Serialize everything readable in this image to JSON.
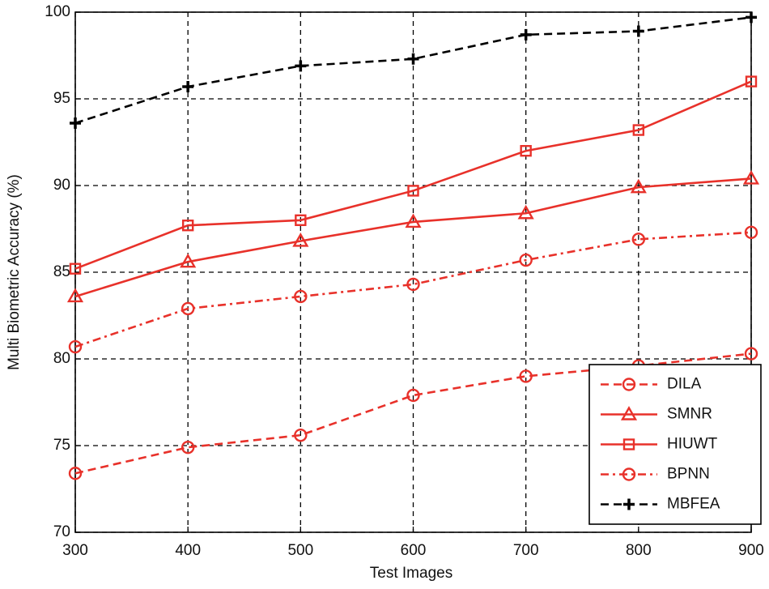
{
  "chart_data": {
    "type": "line",
    "xlabel": "Test Images",
    "ylabel": "Multi Biometric Accuracy (%)",
    "x": [
      300,
      400,
      500,
      600,
      700,
      800,
      900
    ],
    "series": [
      {
        "name": "DILA",
        "color": "#e8312a",
        "dash": "dashed",
        "marker": "circle",
        "values": [
          73.4,
          74.9,
          75.6,
          77.9,
          79.0,
          79.6,
          80.3
        ]
      },
      {
        "name": "SMNR",
        "color": "#e8312a",
        "dash": "solid",
        "marker": "triangle",
        "values": [
          83.6,
          85.6,
          86.8,
          87.9,
          88.4,
          89.9,
          90.4
        ]
      },
      {
        "name": "HIUWT",
        "color": "#e8312a",
        "dash": "solid",
        "marker": "square",
        "values": [
          85.2,
          87.7,
          88.0,
          89.7,
          92.0,
          93.2,
          96.0
        ]
      },
      {
        "name": "BPNN",
        "color": "#e8312a",
        "dash": "dashdot",
        "marker": "circle",
        "values": [
          80.7,
          82.9,
          83.6,
          84.3,
          85.7,
          86.9,
          87.3
        ]
      },
      {
        "name": "MBFEA",
        "color": "#000000",
        "dash": "dashed",
        "marker": "plus",
        "values": [
          93.6,
          95.7,
          96.9,
          97.3,
          98.7,
          98.9,
          99.7
        ]
      }
    ],
    "xlim": [
      300,
      900
    ],
    "xticks": [
      300,
      400,
      500,
      600,
      700,
      800,
      900
    ],
    "ylim": [
      70,
      100
    ],
    "yticks": [
      70,
      75,
      80,
      85,
      90,
      95,
      100
    ],
    "grid": true,
    "legend": "lower right"
  }
}
